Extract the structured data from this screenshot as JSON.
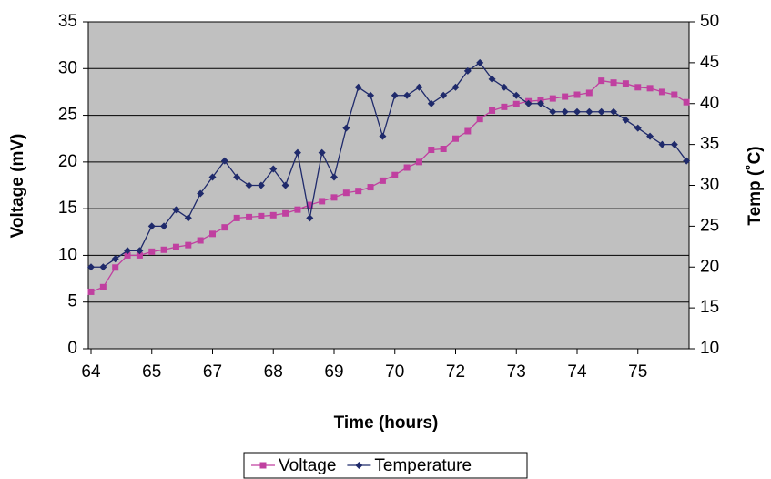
{
  "chart_data": {
    "type": "line",
    "x_label": "Time (hours)",
    "y_label": "Voltage (mV)",
    "y2_label": "Temp (˚C)",
    "categories": [
      "64",
      null,
      null,
      null,
      null,
      "65",
      null,
      null,
      null,
      null,
      "67",
      null,
      null,
      null,
      null,
      "68",
      null,
      null,
      null,
      null,
      "69",
      null,
      null,
      null,
      null,
      "70",
      null,
      null,
      null,
      null,
      "72",
      null,
      null,
      null,
      null,
      "73",
      null,
      null,
      null,
      null,
      "74",
      null,
      null,
      null,
      null,
      "75",
      null,
      null,
      null,
      null
    ],
    "series": [
      {
        "name": "Voltage",
        "color": "#c040a0",
        "marker": "square",
        "values": [
          6.1,
          6.6,
          8.7,
          10,
          10,
          10.4,
          10.6,
          10.9,
          11.1,
          11.6,
          12.3,
          13,
          14,
          14.1,
          14.2,
          14.3,
          14.5,
          14.9,
          15.4,
          15.8,
          16.2,
          16.7,
          16.9,
          17.3,
          18,
          18.6,
          19.4,
          20,
          21.3,
          21.4,
          22.5,
          23.3,
          24.6,
          25.5,
          25.9,
          26.2,
          26.5,
          26.6,
          26.8,
          27,
          27.2,
          27.4,
          28.7,
          28.5,
          28.4,
          28,
          27.9,
          27.5,
          27.2,
          26.4
        ]
      },
      {
        "name": "Temperature",
        "color": "#1f2a6b",
        "marker": "diamond",
        "axis": "y2",
        "values": [
          20,
          20,
          21,
          22,
          22,
          25,
          25,
          27,
          26,
          29,
          31,
          33,
          31,
          30,
          30,
          32,
          30,
          34,
          26,
          34,
          31,
          37,
          42,
          41,
          36,
          41,
          41,
          42,
          40,
          41,
          42,
          44,
          45,
          43,
          42,
          41,
          40,
          40,
          39,
          39,
          39,
          39,
          39,
          39,
          38,
          37,
          36,
          35,
          35,
          33
        ]
      }
    ],
    "ylim": [
      0,
      35
    ],
    "yticks": [
      0,
      5,
      10,
      15,
      20,
      25,
      30,
      35
    ],
    "y2lim": [
      10,
      50
    ],
    "y2ticks": [
      10,
      15,
      20,
      25,
      30,
      35,
      40,
      45,
      50
    ],
    "grid": true,
    "legend": "bottom"
  }
}
